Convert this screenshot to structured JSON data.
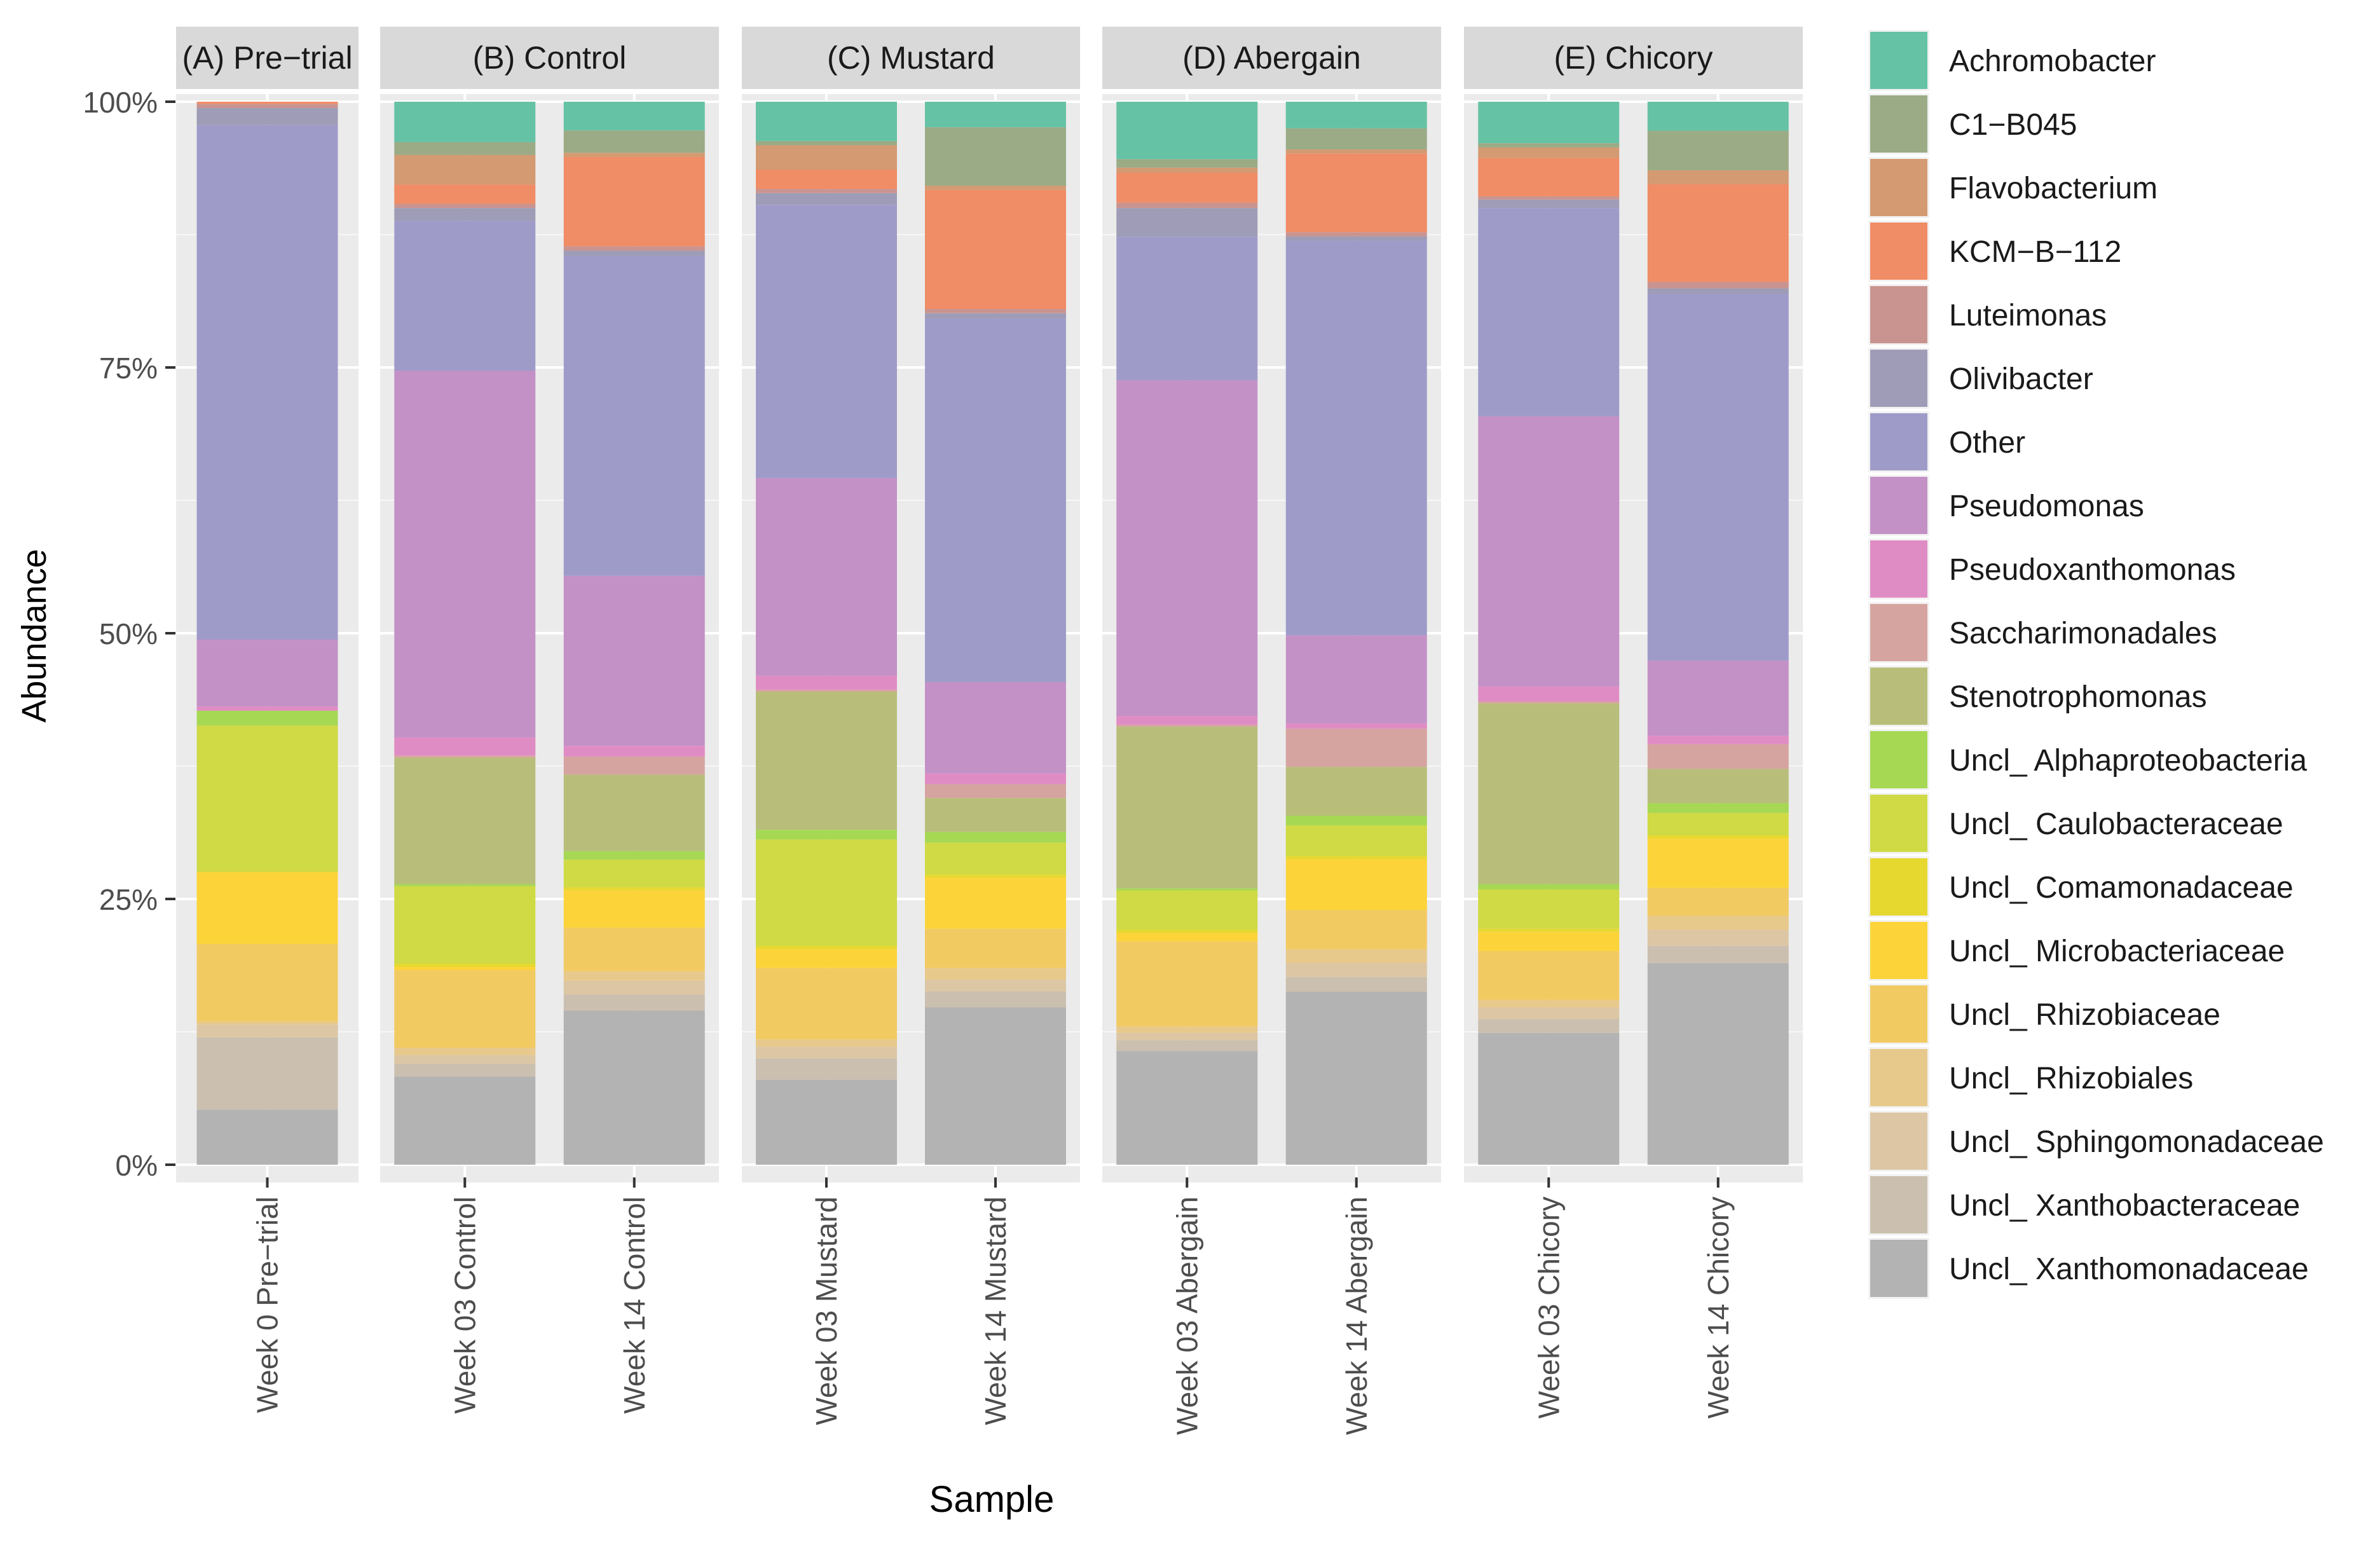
{
  "chart_data": {
    "type": "bar",
    "stacked": true,
    "title": "",
    "xlabel": "Sample",
    "ylabel": "Abundance",
    "ylim": [
      0,
      1
    ],
    "yticks": [
      {
        "value": 0,
        "label": "0%"
      },
      {
        "value": 0.25,
        "label": "25%"
      },
      {
        "value": 0.5,
        "label": "50%"
      },
      {
        "value": 0.75,
        "label": "75%"
      },
      {
        "value": 1,
        "label": "100%"
      }
    ],
    "grid": true,
    "legend_position": "right",
    "taxa": [
      {
        "name": "Achromobacter",
        "color": "#66c2a5"
      },
      {
        "name": "C1−B045",
        "color": "#9aab86"
      },
      {
        "name": "Flavobacterium",
        "color": "#d49a72"
      },
      {
        "name": "KCM−B−112",
        "color": "#f08c66"
      },
      {
        "name": "Luteimonas",
        "color": "#c99490"
      },
      {
        "name": "Olivibacter",
        "color": "#9e9cb6"
      },
      {
        "name": "Other",
        "color": "#9f9bc9"
      },
      {
        "name": "Pseudomonas",
        "color": "#c391c6"
      },
      {
        "name": "Pseudoxanthomonas",
        "color": "#e08cc4"
      },
      {
        "name": "Saccharimonadales",
        "color": "#d6a4a0"
      },
      {
        "name": "Stenotrophomonas",
        "color": "#b8be7a"
      },
      {
        "name": "Uncl_ Alphaproteobacteria",
        "color": "#a6d854"
      },
      {
        "name": "Uncl_ Caulobacteraceae",
        "color": "#cfda44"
      },
      {
        "name": "Uncl_ Comamonadaceae",
        "color": "#e7d830"
      },
      {
        "name": "Uncl_ Microbacteriaceae",
        "color": "#fcd43a"
      },
      {
        "name": "Uncl_ Rhizobiaceae",
        "color": "#f2ca62"
      },
      {
        "name": "Uncl_ Rhizobiales",
        "color": "#e8c98c"
      },
      {
        "name": "Uncl_ Sphingomonadaceae",
        "color": "#dcc6a4"
      },
      {
        "name": "Uncl_ Xanthobacteraceae",
        "color": "#cbbfaf"
      },
      {
        "name": "Uncl_ Xanthomonadaceae",
        "color": "#b3b3b3"
      }
    ],
    "panels": [
      {
        "title": "(A) Pre−trial",
        "bars": [
          {
            "label": "Week 0 Pre−trial",
            "values": {
              "Uncl_ Xanthomonadaceae": 5.2,
              "Uncl_ Xanthobacteraceae": 6.8,
              "Uncl_ Sphingomonadaceae": 1.2,
              "Uncl_ Rhizobiales": 0.3,
              "Uncl_ Rhizobiaceae": 7.3,
              "Uncl_ Microbacteriaceae": 6.8,
              "Uncl_ Comamonadaceae": 0,
              "Uncl_ Caulobacteraceae": 13.8,
              "Uncl_ Alphaproteobacteria": 1.4,
              "Stenotrophomonas": 0,
              "Saccharimonadales": 0,
              "Pseudoxanthomonas": 0.4,
              "Pseudomonas": 6.3,
              "Other": 48.5,
              "Olivibacter": 1.6,
              "Luteimonas": 0.4,
              "KCM−B−112": 0.2,
              "Flavobacterium": 0,
              "C1−B045": 0,
              "Achromobacter": 0
            }
          }
        ]
      },
      {
        "title": "(B) Control",
        "bars": [
          {
            "label": "Week 03 Control",
            "values": {
              "Uncl_ Xanthomonadaceae": 8.3,
              "Uncl_ Xanthobacteraceae": 1.2,
              "Uncl_ Sphingomonadaceae": 0.8,
              "Uncl_ Rhizobiales": 0.7,
              "Uncl_ Rhizobiaceae": 7.3,
              "Uncl_ Microbacteriaceae": 0.3,
              "Uncl_ Comamonadaceae": 0.3,
              "Uncl_ Caulobacteraceae": 7.3,
              "Uncl_ Alphaproteobacteria": 0.2,
              "Stenotrophomonas": 11.9,
              "Saccharimonadales": 0.2,
              "Pseudoxanthomonas": 1.7,
              "Pseudomonas": 34.5,
              "Other": 14.1,
              "Olivibacter": 1.2,
              "Luteimonas": 0.4,
              "KCM−B−112": 1.8,
              "Flavobacterium": 2.8,
              "C1−B045": 1.2,
              "Achromobacter": 3.8
            }
          },
          {
            "label": "Week 14 Control",
            "values": {
              "Uncl_ Xanthomonadaceae": 14.5,
              "Uncl_ Xanthobacteraceae": 1.5,
              "Uncl_ Sphingomonadaceae": 1.3,
              "Uncl_ Rhizobiales": 0.9,
              "Uncl_ Rhizobiaceae": 4.1,
              "Uncl_ Microbacteriaceae": 3.5,
              "Uncl_ Comamonadaceae": 0.3,
              "Uncl_ Caulobacteraceae": 2.6,
              "Uncl_ Alphaproteobacteria": 0.8,
              "Stenotrophomonas": 7.2,
              "Saccharimonadales": 1.7,
              "Pseudoxanthomonas": 1.0,
              "Pseudomonas": 16.0,
              "Other": 30.1,
              "Olivibacter": 0.5,
              "Luteimonas": 0.4,
              "KCM−B−112": 8.4,
              "Flavobacterium": 0.4,
              "C1−B045": 2.1,
              "Achromobacter": 2.7
            }
          }
        ]
      },
      {
        "title": "(C) Mustard",
        "bars": [
          {
            "label": "Week 03 Mustard",
            "values": {
              "Uncl_ Xanthomonadaceae": 8.0,
              "Uncl_ Xanthobacteraceae": 2.0,
              "Uncl_ Sphingomonadaceae": 1.1,
              "Uncl_ Rhizobiales": 0.7,
              "Uncl_ Rhizobiaceae": 6.7,
              "Uncl_ Microbacteriaceae": 1.8,
              "Uncl_ Comamonadaceae": 0.3,
              "Uncl_ Caulobacteraceae": 10.0,
              "Uncl_ Alphaproteobacteria": 0.9,
              "Stenotrophomonas": 13.0,
              "Saccharimonadales": 0.2,
              "Pseudoxanthomonas": 1.3,
              "Pseudomonas": 18.6,
              "Other": 25.7,
              "Olivibacter": 1.1,
              "Luteimonas": 0.4,
              "KCM−B−112": 1.8,
              "Flavobacterium": 2.3,
              "C1−B045": 0.4,
              "Achromobacter": 3.7
            }
          },
          {
            "label": "Week 14 Mustard",
            "values": {
              "Uncl_ Xanthomonadaceae": 14.8,
              "Uncl_ Xanthobacteraceae": 1.5,
              "Uncl_ Sphingomonadaceae": 1.1,
              "Uncl_ Rhizobiales": 1.1,
              "Uncl_ Rhizobiaceae": 3.7,
              "Uncl_ Microbacteriaceae": 4.8,
              "Uncl_ Comamonadaceae": 0.3,
              "Uncl_ Caulobacteraceae": 3.0,
              "Uncl_ Alphaproteobacteria": 1.0,
              "Stenotrophomonas": 3.2,
              "Saccharimonadales": 1.3,
              "Pseudoxanthomonas": 1.0,
              "Pseudomonas": 8.6,
              "Other": 34.2,
              "Olivibacter": 0.5,
              "Luteimonas": 0.4,
              "KCM−B−112": 11.2,
              "Flavobacterium": 0.4,
              "C1−B045": 5.5,
              "Achromobacter": 2.4
            }
          }
        ]
      },
      {
        "title": "(D) Abergain",
        "bars": [
          {
            "label": "Week 03 Abergain",
            "values": {
              "Uncl_ Xanthomonadaceae": 10.7,
              "Uncl_ Xanthobacteraceae": 1.0,
              "Uncl_ Sphingomonadaceae": 0.7,
              "Uncl_ Rhizobiales": 0.6,
              "Uncl_ Rhizobiaceae": 8.0,
              "Uncl_ Microbacteriaceae": 0.8,
              "Uncl_ Comamonadaceae": 0.3,
              "Uncl_ Caulobacteraceae": 3.7,
              "Uncl_ Alphaproteobacteria": 0.2,
              "Stenotrophomonas": 15.2,
              "Saccharimonadales": 0.2,
              "Pseudoxanthomonas": 0.8,
              "Pseudomonas": 31.6,
              "Other": 13.5,
              "Olivibacter": 2.7,
              "Luteimonas": 0.5,
              "KCM−B−112": 2.8,
              "Flavobacterium": 0.5,
              "C1−B045": 0.8,
              "Achromobacter": 5.4
            }
          },
          {
            "label": "Week 14 Abergain",
            "values": {
              "Uncl_ Xanthomonadaceae": 16.3,
              "Uncl_ Xanthobacteraceae": 1.4,
              "Uncl_ Sphingomonadaceae": 1.3,
              "Uncl_ Rhizobiales": 1.3,
              "Uncl_ Rhizobiaceae": 3.7,
              "Uncl_ Microbacteriaceae": 4.8,
              "Uncl_ Comamonadaceae": 0.3,
              "Uncl_ Caulobacteraceae": 2.9,
              "Uncl_ Alphaproteobacteria": 0.9,
              "Stenotrophomonas": 4.6,
              "Saccharimonadales": 3.6,
              "Pseudoxanthomonas": 0.5,
              "Pseudomonas": 8.3,
              "Other": 37.2,
              "Olivibacter": 0.4,
              "Luteimonas": 0.4,
              "KCM−B−112": 7.4,
              "Flavobacterium": 0.4,
              "C1−B045": 2.0,
              "Achromobacter": 2.5
            }
          }
        ]
      },
      {
        "title": "(E) Chicory",
        "bars": [
          {
            "label": "Week 03 Chicory",
            "values": {
              "Uncl_ Xanthomonadaceae": 12.4,
              "Uncl_ Xanthobacteraceae": 1.3,
              "Uncl_ Sphingomonadaceae": 1.1,
              "Uncl_ Rhizobiales": 0.7,
              "Uncl_ Rhizobiaceae": 4.6,
              "Uncl_ Microbacteriaceae": 1.8,
              "Uncl_ Comamonadaceae": 0.3,
              "Uncl_ Caulobacteraceae": 3.7,
              "Uncl_ Alphaproteobacteria": 0.5,
              "Stenotrophomonas": 17.0,
              "Saccharimonadales": 0.2,
              "Pseudoxanthomonas": 1.4,
              "Pseudomonas": 25.4,
              "Other": 19.6,
              "Olivibacter": 0.8,
              "Luteimonas": 0.3,
              "KCM−B−112": 3.6,
              "Flavobacterium": 1.0,
              "C1−B045": 0.4,
              "Achromobacter": 3.9
            }
          },
          {
            "label": "Week 14 Chicory",
            "values": {
              "Uncl_ Xanthomonadaceae": 18.8,
              "Uncl_ Xanthobacteraceae": 1.6,
              "Uncl_ Sphingomonadaceae": 1.5,
              "Uncl_ Rhizobiales": 1.3,
              "Uncl_ Rhizobiaceae": 2.6,
              "Uncl_ Microbacteriaceae": 4.6,
              "Uncl_ Comamonadaceae": 0.3,
              "Uncl_ Caulobacteraceae": 2.1,
              "Uncl_ Alphaproteobacteria": 0.9,
              "Stenotrophomonas": 3.2,
              "Saccharimonadales": 2.3,
              "Pseudoxanthomonas": 0.8,
              "Pseudomonas": 7.0,
              "Other": 34.2,
              "Olivibacter": 0.5,
              "Luteimonas": 0.6,
              "KCM−B−112": 9.1,
              "Flavobacterium": 1.3,
              "C1−B045": 3.7,
              "Achromobacter": 2.7
            }
          }
        ]
      }
    ]
  }
}
